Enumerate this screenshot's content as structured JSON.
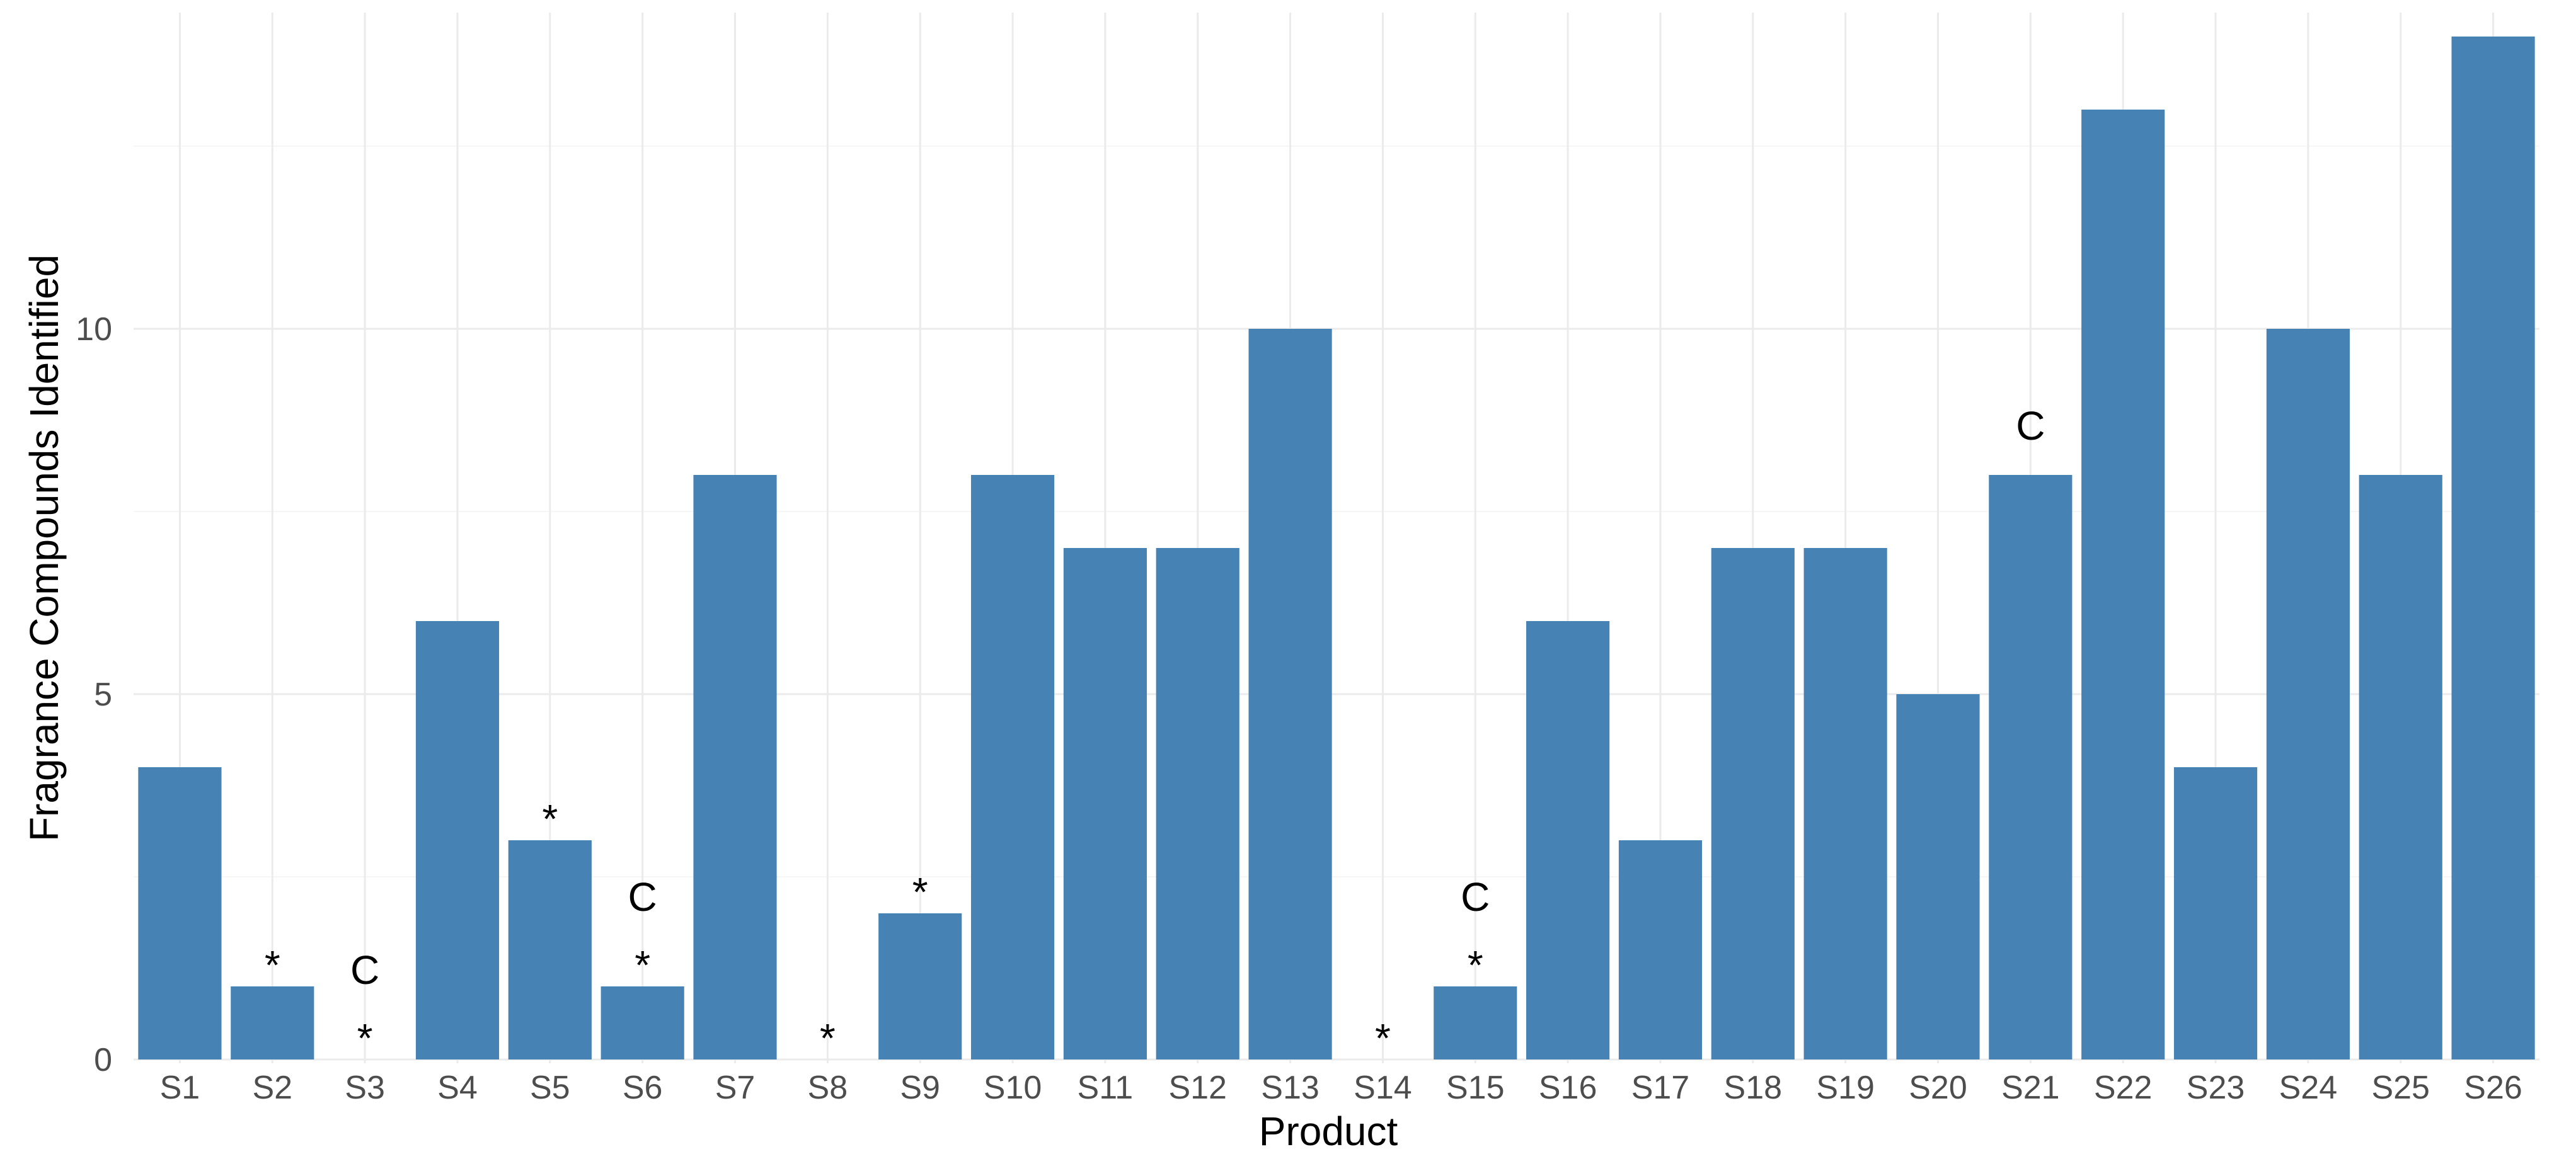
{
  "chart_data": {
    "type": "bar",
    "title": "",
    "xlabel": "Product",
    "ylabel": "Fragrance Compounds Identified",
    "categories": [
      "S1",
      "S2",
      "S3",
      "S4",
      "S5",
      "S6",
      "S7",
      "S8",
      "S9",
      "S10",
      "S11",
      "S12",
      "S13",
      "S14",
      "S15",
      "S16",
      "S17",
      "S18",
      "S19",
      "S20",
      "S21",
      "S22",
      "S23",
      "S24",
      "S25",
      "S26"
    ],
    "values": [
      4,
      1,
      0,
      6,
      3,
      1,
      8,
      0,
      2,
      8,
      7,
      7,
      10,
      0,
      1,
      6,
      3,
      7,
      7,
      5,
      8,
      13,
      4,
      10,
      8,
      14
    ],
    "annotations": [
      {
        "category": "S2",
        "labels": [
          "*"
        ]
      },
      {
        "category": "S3",
        "labels": [
          "*",
          "C"
        ]
      },
      {
        "category": "S5",
        "labels": [
          "*"
        ]
      },
      {
        "category": "S6",
        "labels": [
          "*",
          "C"
        ]
      },
      {
        "category": "S8",
        "labels": [
          "*"
        ]
      },
      {
        "category": "S9",
        "labels": [
          "*"
        ]
      },
      {
        "category": "S14",
        "labels": [
          "*"
        ]
      },
      {
        "category": "S15",
        "labels": [
          "*",
          "C"
        ]
      },
      {
        "category": "S21",
        "labels": [
          "C"
        ]
      }
    ],
    "yticks": [
      0,
      5,
      10
    ],
    "ylim": [
      0,
      14
    ],
    "grid": true,
    "bar_color": "#4682B4",
    "legend": "none"
  }
}
